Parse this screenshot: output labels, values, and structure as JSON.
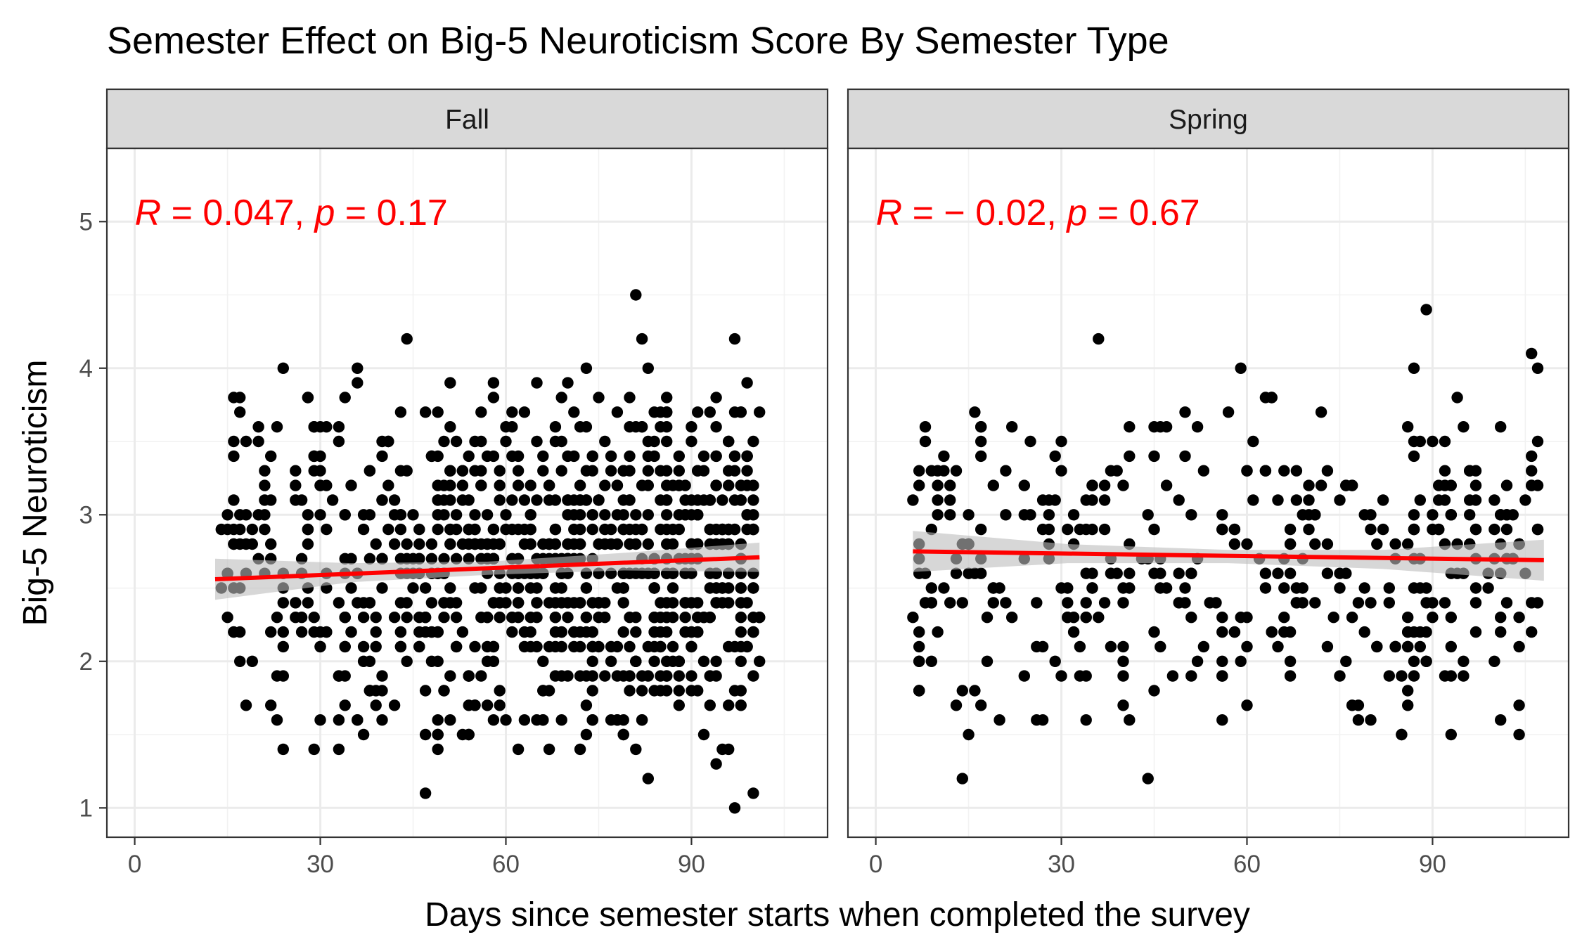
{
  "chart_data": {
    "type": "scatter",
    "title": "Semester Effect on Big-5 Neuroticism Score By Semester Type",
    "xlabel": "Days since semester starts when completed the survey",
    "ylabel": "Big-5 Neuroticism",
    "xlim": [
      -4.5,
      112
    ],
    "ylim": [
      0.8,
      5.5
    ],
    "x_ticks": [
      0,
      30,
      60,
      90
    ],
    "x_tick_labels": [
      "0",
      "30",
      "60",
      "90"
    ],
    "y_ticks": [
      1,
      2,
      3,
      4,
      5
    ],
    "y_tick_labels": [
      "1",
      "2",
      "3",
      "4",
      "5"
    ],
    "grid": true,
    "point_color": "#000000",
    "fit_color": "#ff0000",
    "band_color": "#bdbdbd",
    "panels": [
      {
        "label": "Fall",
        "stat": {
          "r_label": "R",
          "r_text": " = 0.047, ",
          "p_label": "p",
          "p_text": " = 0.17"
        },
        "x_range": [
          13,
          101
        ],
        "fit": {
          "x": [
            13,
            101
          ],
          "y": [
            2.56,
            2.71
          ]
        },
        "band": {
          "x": [
            13,
            35,
            57,
            79,
            101
          ],
          "upper": [
            2.7,
            2.67,
            2.68,
            2.74,
            2.81
          ],
          "lower": [
            2.42,
            2.54,
            2.59,
            2.62,
            2.61
          ]
        }
      },
      {
        "label": "Spring",
        "stat": {
          "r_label": "R",
          "r_text": " = − 0.02, ",
          "p_label": "p",
          "p_text": " = 0.67"
        },
        "x_range": [
          6,
          108
        ],
        "fit": {
          "x": [
            6,
            108
          ],
          "y": [
            2.75,
            2.69
          ]
        },
        "band": {
          "x": [
            6,
            31,
            57,
            82,
            108
          ],
          "upper": [
            2.89,
            2.8,
            2.76,
            2.76,
            2.83
          ],
          "lower": [
            2.61,
            2.67,
            2.67,
            2.63,
            2.55
          ]
        }
      }
    ]
  }
}
